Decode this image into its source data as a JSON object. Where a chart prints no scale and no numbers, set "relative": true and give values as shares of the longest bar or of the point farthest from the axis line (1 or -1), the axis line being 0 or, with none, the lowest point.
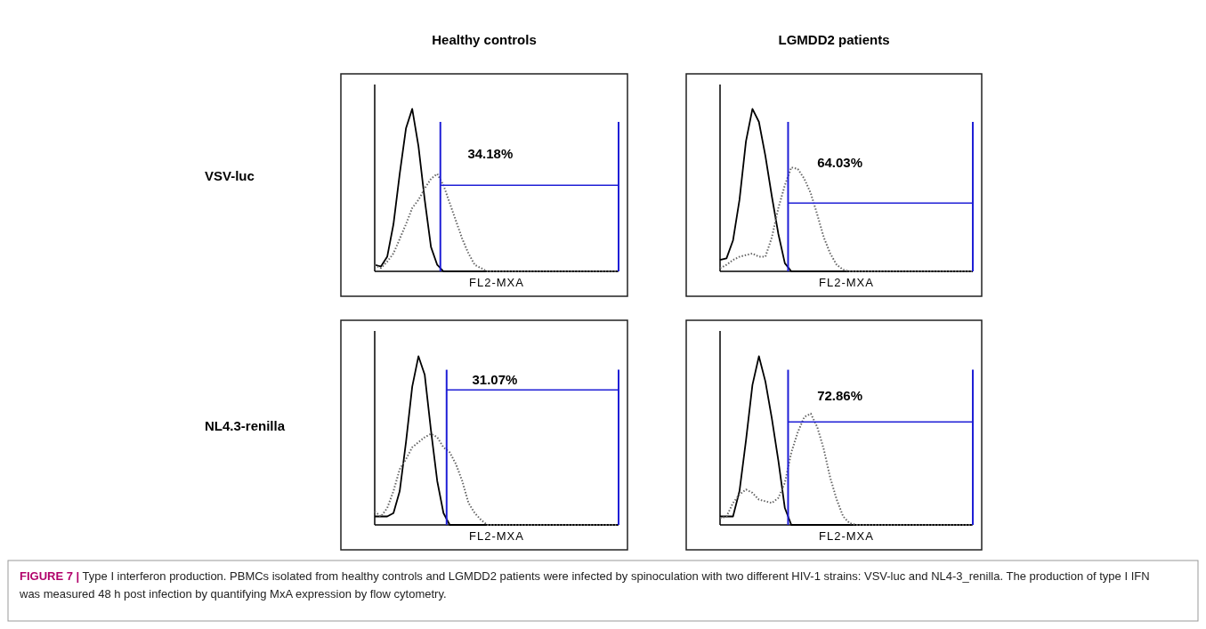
{
  "chart_data": [
    {
      "type": "line",
      "relative": true,
      "title": "Healthy controls",
      "ylabel": "VSV-luc",
      "xlabel": "FL2-MXA",
      "annotations": [
        "34.18%"
      ],
      "ref_lines": [
        {
          "axis": "y",
          "value": 0.53,
          "color": "#1f1fd6"
        }
      ],
      "categories": [
        null,
        null,
        null,
        null,
        null,
        null,
        null,
        null,
        null,
        null,
        null,
        null,
        null,
        null,
        null,
        null,
        null,
        null,
        null,
        null,
        null,
        null,
        null,
        null,
        null,
        null,
        null,
        null,
        null,
        null,
        null,
        null,
        null,
        null,
        null,
        null,
        null,
        null,
        null,
        null
      ],
      "series": [
        {
          "color": "#000000",
          "line_style": "solid",
          "values": [
            0.04,
            0.03,
            0.09,
            0.29,
            0.6,
            0.88,
            1,
            0.77,
            0.44,
            0.15,
            0.04,
            0,
            0,
            0,
            0,
            0,
            0,
            0,
            0,
            0,
            0,
            0,
            0,
            0,
            0,
            0,
            0,
            0,
            0,
            0,
            0,
            0,
            0,
            0,
            0,
            0,
            0,
            0,
            0,
            0
          ]
        },
        {
          "color": "#666666",
          "line_style": "dotted",
          "values": [
            0.04,
            0.02,
            0.06,
            0.11,
            0.2,
            0.29,
            0.39,
            0.44,
            0.51,
            0.57,
            0.6,
            0.53,
            0.42,
            0.31,
            0.2,
            0.11,
            0.04,
            0.02,
            0,
            0,
            0,
            0,
            0,
            0,
            0,
            0,
            0,
            0,
            0,
            0,
            0,
            0,
            0,
            0,
            0,
            0,
            0,
            0,
            0,
            0
          ]
        }
      ]
    },
    {
      "type": "line",
      "relative": true,
      "title": "LGMDD2 patients",
      "xlabel": "FL2-MXA",
      "annotations": [
        "64.03%"
      ],
      "ref_lines": [
        {
          "axis": "y",
          "value": 0.42,
          "color": "#1f1fd6"
        }
      ],
      "categories": [
        null,
        null,
        null,
        null,
        null,
        null,
        null,
        null,
        null,
        null,
        null,
        null,
        null,
        null,
        null,
        null,
        null,
        null,
        null,
        null,
        null,
        null,
        null,
        null,
        null,
        null,
        null,
        null,
        null,
        null,
        null,
        null,
        null,
        null,
        null,
        null,
        null,
        null,
        null,
        null
      ],
      "series": [
        {
          "color": "#000000",
          "line_style": "solid",
          "values": [
            0.07,
            0.08,
            0.19,
            0.44,
            0.8,
            1,
            0.92,
            0.71,
            0.46,
            0.23,
            0.05,
            0,
            0,
            0,
            0,
            0,
            0,
            0,
            0,
            0,
            0,
            0,
            0,
            0,
            0,
            0,
            0,
            0,
            0,
            0,
            0,
            0,
            0,
            0,
            0,
            0,
            0,
            0,
            0,
            0
          ]
        },
        {
          "color": "#666666",
          "line_style": "dotted",
          "values": [
            0.02,
            0.04,
            0.07,
            0.09,
            0.1,
            0.11,
            0.09,
            0.09,
            0.21,
            0.39,
            0.53,
            0.64,
            0.63,
            0.57,
            0.48,
            0.35,
            0.21,
            0.11,
            0.04,
            0.01,
            0,
            0,
            0,
            0,
            0,
            0,
            0,
            0,
            0,
            0,
            0,
            0,
            0,
            0,
            0,
            0,
            0,
            0,
            0,
            0
          ]
        }
      ]
    },
    {
      "type": "line",
      "relative": true,
      "ylabel": "NL4.3-renilla",
      "xlabel": "FL2-MXA",
      "annotations": [
        "31.07%"
      ],
      "ref_lines": [
        {
          "axis": "y",
          "value": 0.8,
          "color": "#1f1fd6"
        }
      ],
      "categories": [
        null,
        null,
        null,
        null,
        null,
        null,
        null,
        null,
        null,
        null,
        null,
        null,
        null,
        null,
        null,
        null,
        null,
        null,
        null,
        null,
        null,
        null,
        null,
        null,
        null,
        null,
        null,
        null,
        null,
        null,
        null,
        null,
        null,
        null,
        null,
        null,
        null,
        null,
        null,
        null
      ],
      "series": [
        {
          "color": "#000000",
          "line_style": "solid",
          "values": [
            0.05,
            0.05,
            0.05,
            0.07,
            0.2,
            0.49,
            0.82,
            1,
            0.89,
            0.56,
            0.26,
            0.07,
            0,
            0,
            0,
            0,
            0,
            0,
            0,
            0,
            0,
            0,
            0,
            0,
            0,
            0,
            0,
            0,
            0,
            0,
            0,
            0,
            0,
            0,
            0,
            0,
            0,
            0,
            0,
            0
          ]
        },
        {
          "color": "#666666",
          "line_style": "dotted",
          "values": [
            0.08,
            0.05,
            0.1,
            0.2,
            0.33,
            0.39,
            0.46,
            0.49,
            0.52,
            0.54,
            0.52,
            0.46,
            0.43,
            0.36,
            0.26,
            0.13,
            0.07,
            0.03,
            0,
            0,
            0,
            0,
            0,
            0,
            0,
            0,
            0,
            0,
            0,
            0,
            0,
            0,
            0,
            0,
            0,
            0,
            0,
            0,
            0,
            0
          ]
        }
      ]
    },
    {
      "type": "line",
      "relative": true,
      "xlabel": "FL2-MXA",
      "ref_lines": [
        {
          "axis": "y",
          "value": 0.61,
          "color": "#1f1fd6"
        }
      ],
      "annotations": [
        "72.86%",
        "FIGURE 7 | Type I interferon production. PBMCs isolated from healthy controls and LGMDD2 patients were infected by spinoculation with two different HIV-1 strains: VSV-luc and NL4-3_renilla. The production of type I IFN was measured 48 h post infection by quantifying MxA expression by flow cytometry."
      ],
      "categories": [
        null,
        null,
        null,
        null,
        null,
        null,
        null,
        null,
        null,
        null,
        null,
        null,
        null,
        null,
        null,
        null,
        null,
        null,
        null,
        null,
        null,
        null,
        null,
        null,
        null,
        null,
        null,
        null,
        null,
        null,
        null,
        null,
        null,
        null,
        null,
        null,
        null,
        null,
        null,
        null
      ],
      "series": [
        {
          "color": "#000000",
          "line_style": "solid",
          "values": [
            0.05,
            0.05,
            0.05,
            0.2,
            0.5,
            0.83,
            1,
            0.85,
            0.63,
            0.38,
            0.1,
            0,
            0,
            0,
            0,
            0,
            0,
            0,
            0,
            0,
            0,
            0,
            0,
            0,
            0,
            0,
            0,
            0,
            0,
            0,
            0,
            0,
            0,
            0,
            0,
            0,
            0,
            0,
            0,
            0
          ]
        },
        {
          "color": "#666666",
          "line_style": "dotted",
          "values": [
            0.04,
            0.05,
            0.13,
            0.18,
            0.21,
            0.19,
            0.15,
            0.14,
            0.13,
            0.16,
            0.25,
            0.43,
            0.55,
            0.64,
            0.66,
            0.58,
            0.45,
            0.28,
            0.15,
            0.05,
            0.01,
            0,
            0,
            0,
            0,
            0,
            0,
            0,
            0,
            0,
            0,
            0,
            0,
            0,
            0,
            0,
            0,
            0,
            0,
            0
          ]
        }
      ]
    }
  ]
}
